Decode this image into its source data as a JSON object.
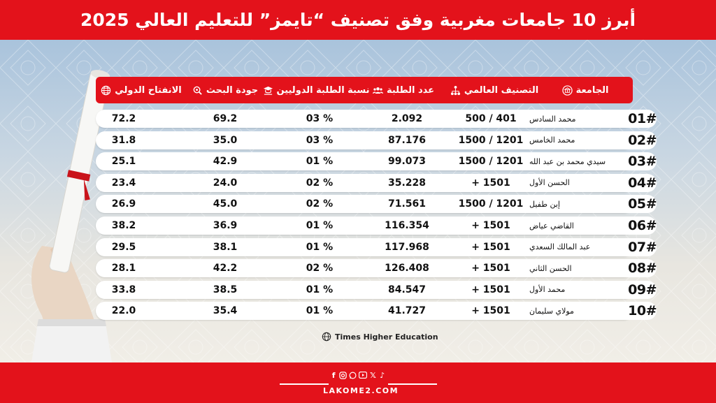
{
  "title": "أبرز 10 جامعات مغربية وفق تصنيف “تايمز” للتعليم العالي 2025",
  "headers": {
    "university": "الجامعة",
    "world_rank": "التصنيف العالمي",
    "students": "عدد الطلبة",
    "intl_students": "نسبة الطلبة الدوليين",
    "research": "جودة البحث",
    "intl_outlook": "الانفتاح الدولي"
  },
  "rows": [
    {
      "rank": "01#",
      "name": "محمد السادس",
      "world_rank": "500 / 401",
      "students": "2.092",
      "intl": "03 %",
      "research": "69.2",
      "outlook": "72.2"
    },
    {
      "rank": "02#",
      "name": "محمد الخامس",
      "world_rank": "1500 / 1201",
      "students": "87.176",
      "intl": "03 %",
      "research": "35.0",
      "outlook": "31.8"
    },
    {
      "rank": "03#",
      "name": "سيدي محمد بن عبد الله",
      "world_rank": "1500 / 1201",
      "students": "99.073",
      "intl": "01 %",
      "research": "42.9",
      "outlook": "25.1"
    },
    {
      "rank": "04#",
      "name": "الحسن الأول",
      "world_rank": "+ 1501",
      "students": "35.228",
      "intl": "02 %",
      "research": "24.0",
      "outlook": "23.4"
    },
    {
      "rank": "05#",
      "name": "إبن طفيل",
      "world_rank": "1500 / 1201",
      "students": "71.561",
      "intl": "02 %",
      "research": "45.0",
      "outlook": "26.9"
    },
    {
      "rank": "06#",
      "name": "القاضي عياض",
      "world_rank": "+ 1501",
      "students": "116.354",
      "intl": "01 %",
      "research": "36.9",
      "outlook": "38.2"
    },
    {
      "rank": "07#",
      "name": "عبد المالك السعدي",
      "world_rank": "+ 1501",
      "students": "117.968",
      "intl": "01 %",
      "research": "38.1",
      "outlook": "29.5"
    },
    {
      "rank": "08#",
      "name": "الحسن الثاني",
      "world_rank": "+ 1501",
      "students": "126.408",
      "intl": "02 %",
      "research": "42.2",
      "outlook": "28.1"
    },
    {
      "rank": "09#",
      "name": "محمد الأول",
      "world_rank": "+ 1501",
      "students": "84.547",
      "intl": "01 %",
      "research": "38.5",
      "outlook": "33.8"
    },
    {
      "rank": "10#",
      "name": "مولاي سليمان",
      "world_rank": "+ 1501",
      "students": "41.727",
      "intl": "01 %",
      "research": "35.4",
      "outlook": "22.0"
    }
  ],
  "source": "Times Higher Education",
  "footer": {
    "website": "LAKOME2.COM",
    "social_icons": [
      "facebook-icon",
      "instagram-icon",
      "whatsapp-icon",
      "youtube-icon",
      "x-icon",
      "tiktok-icon"
    ]
  },
  "colors": {
    "accent": "#e3121b",
    "background_top": "#a9c3dc",
    "background_bottom": "#f1eee7"
  }
}
